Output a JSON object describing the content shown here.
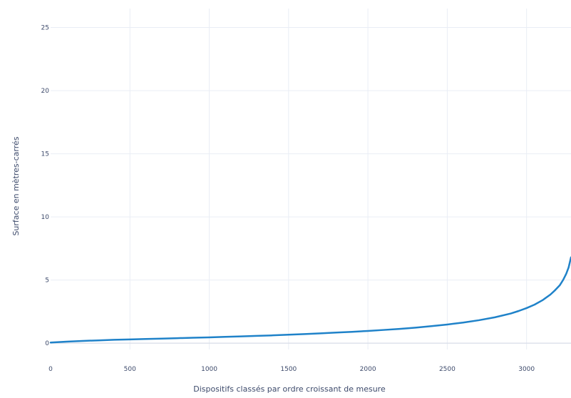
{
  "chart_data": {
    "type": "line",
    "title": "",
    "xlabel": "Dispositifs classés par ordre croissant de mesure",
    "ylabel": "Surface en mètres-carrés",
    "xlim": [
      0,
      3280
    ],
    "ylim": [
      -0.5,
      26.5
    ],
    "x_ticks": [
      0,
      500,
      1000,
      1500,
      2000,
      2500,
      3000
    ],
    "y_ticks": [
      0,
      5,
      10,
      15,
      20,
      25
    ],
    "x_tick_labels": [
      "0",
      "500",
      "1000",
      "1500",
      "2000",
      "2500",
      "3000"
    ],
    "y_tick_labels": [
      "0",
      "5",
      "10",
      "15",
      "20",
      "25"
    ],
    "grid": true,
    "legend": "none",
    "colors": {
      "line": "#1f82c9",
      "grid": "#e9edf5",
      "text": "#3d4a6b"
    },
    "series": [
      {
        "x": [
          0,
          100,
          200,
          300,
          400,
          500,
          600,
          700,
          800,
          900,
          1000,
          1100,
          1200,
          1300,
          1400,
          1500,
          1600,
          1700,
          1800,
          1900,
          2000,
          2100,
          2200,
          2300,
          2400,
          2500,
          2600,
          2700,
          2800,
          2900,
          2950,
          3000,
          3050,
          3100,
          3150,
          3180,
          3210,
          3230,
          3250,
          3265,
          3280
        ],
        "y": [
          0.05,
          0.12,
          0.18,
          0.22,
          0.27,
          0.3,
          0.33,
          0.36,
          0.4,
          0.43,
          0.46,
          0.5,
          0.54,
          0.58,
          0.62,
          0.67,
          0.72,
          0.78,
          0.84,
          0.9,
          0.97,
          1.05,
          1.13,
          1.23,
          1.35,
          1.48,
          1.63,
          1.82,
          2.05,
          2.35,
          2.55,
          2.78,
          3.05,
          3.4,
          3.85,
          4.2,
          4.6,
          5.0,
          5.5,
          6.0,
          6.8
        ]
      }
    ]
  }
}
